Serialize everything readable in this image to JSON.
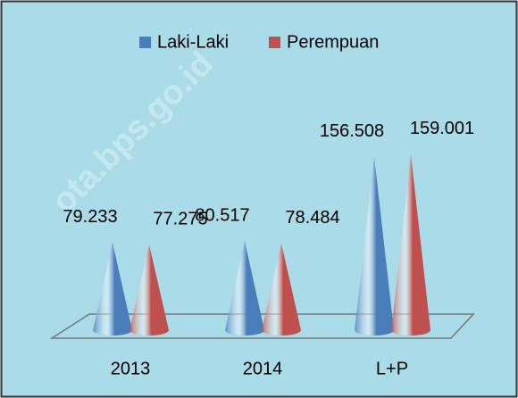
{
  "chart_data": {
    "type": "cone",
    "watermark": "ota.bps.go.id",
    "categories": [
      "2013",
      "2014",
      "L+P"
    ],
    "series": [
      {
        "name": "Laki-Laki",
        "color": "#4a7ebb",
        "values": [
          79233,
          80517,
          156508
        ],
        "value_labels": [
          "79.233",
          "80.517",
          "156.508"
        ]
      },
      {
        "name": "Perempuan",
        "color": "#c0504d",
        "values": [
          77275,
          78484,
          159001
        ],
        "value_labels": [
          "77.275",
          "78.484",
          "159.001"
        ]
      }
    ],
    "legend": "top"
  }
}
